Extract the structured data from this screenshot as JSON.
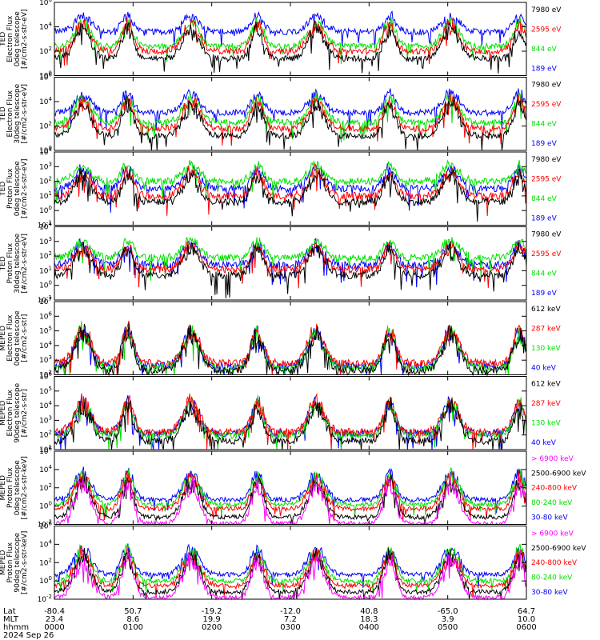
{
  "figure": {
    "date_label": "2024 Sep 26",
    "row_labels": [
      "Lat",
      "MLT",
      "hhmm"
    ],
    "lat_ticks": [
      "-80.4",
      "50.7",
      "-19.2",
      "-12.0",
      "40.8",
      "-65.0",
      "64.7"
    ],
    "mlt_ticks": [
      "23.4",
      "8.6",
      "19.9",
      "7.2",
      "18.3",
      "3.9",
      "10.0"
    ],
    "time_ticks": [
      "0000",
      "0100",
      "0200",
      "0300",
      "0400",
      "0500",
      "0600"
    ]
  },
  "palette": {
    "black": "#000000",
    "red": "#ff0000",
    "green": "#00e000",
    "blue": "#0000ff",
    "magenta": "#ff00ff"
  },
  "chart_data": [
    {
      "type": "line",
      "ylabel": [
        "TED",
        "Electron Flux",
        "0deg telescope",
        "[#/cm2-s-str-eV]"
      ],
      "ylog": true,
      "ylim_exp": [
        0,
        6
      ],
      "tick_exps": [
        0,
        2,
        4,
        6
      ],
      "legend": [
        {
          "label": "7980 eV",
          "color": "black"
        },
        {
          "label": "2595 eV",
          "color": "red"
        },
        {
          "label": "844 eV",
          "color": "green"
        },
        {
          "label": "189 eV",
          "color": "blue"
        }
      ],
      "series_levels": {
        "black": 1.4,
        "red": 2.0,
        "green": 2.4,
        "blue": 3.6
      },
      "gap_base": true
    },
    {
      "type": "line",
      "ylabel": [
        "TED",
        "Electron Flux",
        "30deg telescope",
        "[#/cm2-s-str-eV]"
      ],
      "ylog": true,
      "ylim_exp": [
        0,
        6
      ],
      "tick_exps": [
        0,
        2,
        4,
        6
      ],
      "legend": [
        {
          "label": "7980 eV",
          "color": "black"
        },
        {
          "label": "2595 eV",
          "color": "red"
        },
        {
          "label": "844 eV",
          "color": "green"
        },
        {
          "label": "189 eV",
          "color": "blue"
        }
      ],
      "series_levels": {
        "black": 1.2,
        "red": 1.8,
        "green": 2.3,
        "blue": 3.1
      },
      "gap_base": false
    },
    {
      "type": "line",
      "ylabel": [
        "TED",
        "Proton Flux",
        "0deg telescope",
        "[#/cm2-s-str-eV]"
      ],
      "ylog": true,
      "ylim_exp": [
        -1,
        4
      ],
      "tick_exps": [
        -1,
        0,
        1,
        2,
        3,
        4
      ],
      "legend": [
        {
          "label": "7980 eV",
          "color": "black"
        },
        {
          "label": "2595 eV",
          "color": "red"
        },
        {
          "label": "844 eV",
          "color": "green"
        },
        {
          "label": "189 eV",
          "color": "blue"
        }
      ],
      "series_levels": {
        "black": 0.6,
        "red": 1.0,
        "green": 2.0,
        "blue": 1.5
      },
      "gap_base": false
    },
    {
      "type": "line",
      "ylabel": [
        "TED",
        "Proton Flux",
        "30deg telescope",
        "[#/cm2-s-str-eV]"
      ],
      "ylog": true,
      "ylim_exp": [
        -1,
        4
      ],
      "tick_exps": [
        -1,
        0,
        1,
        2,
        3,
        4
      ],
      "legend": [
        {
          "label": "7980 eV",
          "color": "black"
        },
        {
          "label": "2595 eV",
          "color": "red"
        },
        {
          "label": "844 eV",
          "color": "green"
        },
        {
          "label": "189 eV",
          "color": "blue"
        }
      ],
      "series_levels": {
        "black": 0.7,
        "red": 1.1,
        "green": 1.9,
        "blue": 1.4
      },
      "gap_base": false
    },
    {
      "type": "line",
      "ylabel": [
        "MEPED",
        "Electron Flux",
        "0deg telescope",
        "[#/cm2-s-str]"
      ],
      "ylog": true,
      "ylim_exp": [
        2,
        7
      ],
      "tick_exps": [
        2,
        3,
        4,
        5,
        6,
        7
      ],
      "legend": [
        {
          "label": "612 keV",
          "color": "black"
        },
        {
          "label": "287 keV",
          "color": "red"
        },
        {
          "label": "130 keV",
          "color": "green"
        },
        {
          "label": "40 keV",
          "color": "blue"
        }
      ],
      "series_levels": {
        "black": 2.3,
        "red": 2.8,
        "green": 2.5,
        "blue": 2.6
      },
      "gap_base": false
    },
    {
      "type": "line",
      "ylabel": [
        "MEPED",
        "Electron Flux",
        "90deg telescope",
        "[#/cm2-s-str]"
      ],
      "ylog": true,
      "ylim_exp": [
        1,
        6
      ],
      "tick_exps": [
        1,
        2,
        3,
        4,
        5,
        6
      ],
      "legend": [
        {
          "label": "612 keV",
          "color": "black"
        },
        {
          "label": "287 keV",
          "color": "red"
        },
        {
          "label": "130 keV",
          "color": "green"
        },
        {
          "label": "40 keV",
          "color": "blue"
        }
      ],
      "series_levels": {
        "black": 1.6,
        "red": 2.2,
        "green": 2.0,
        "blue": 2.1
      },
      "gap_base": false
    },
    {
      "type": "line",
      "ylabel": [
        "MEPED",
        "Proton Flux",
        "0deg telescope",
        "[#/cm2-s-str-keV]"
      ],
      "ylog": true,
      "ylim_exp": [
        -2,
        6
      ],
      "tick_exps": [
        -2,
        0,
        2,
        4,
        6
      ],
      "legend": [
        {
          "label": "> 6900 keV",
          "color": "magenta"
        },
        {
          "label": "2500-6900 keV",
          "color": "black"
        },
        {
          "label": "240-800 keV",
          "color": "red"
        },
        {
          "label": "80-240 keV",
          "color": "green"
        },
        {
          "label": "30-80 keV",
          "color": "blue"
        }
      ],
      "series_levels": {
        "magenta": -1.9,
        "black": -1.2,
        "red": -0.3,
        "green": 0.2,
        "blue": 0.7
      },
      "gap_base": true
    },
    {
      "type": "line",
      "ylabel": [
        "MEPED",
        "Proton Flux",
        "90deg telescope",
        "[#/cm2-s-str-keV]"
      ],
      "ylog": true,
      "ylim_exp": [
        -2,
        6
      ],
      "tick_exps": [
        -2,
        0,
        2,
        4,
        6
      ],
      "legend": [
        {
          "label": "> 6900 keV",
          "color": "magenta"
        },
        {
          "label": "2500-6900 keV",
          "color": "black"
        },
        {
          "label": "240-800 keV",
          "color": "red"
        },
        {
          "label": "80-240 keV",
          "color": "green"
        },
        {
          "label": "30-80 keV",
          "color": "blue"
        }
      ],
      "series_levels": {
        "magenta": -1.8,
        "black": -1.2,
        "red": -0.5,
        "green": 0.0,
        "blue": 0.7
      },
      "gap_base": true
    }
  ]
}
